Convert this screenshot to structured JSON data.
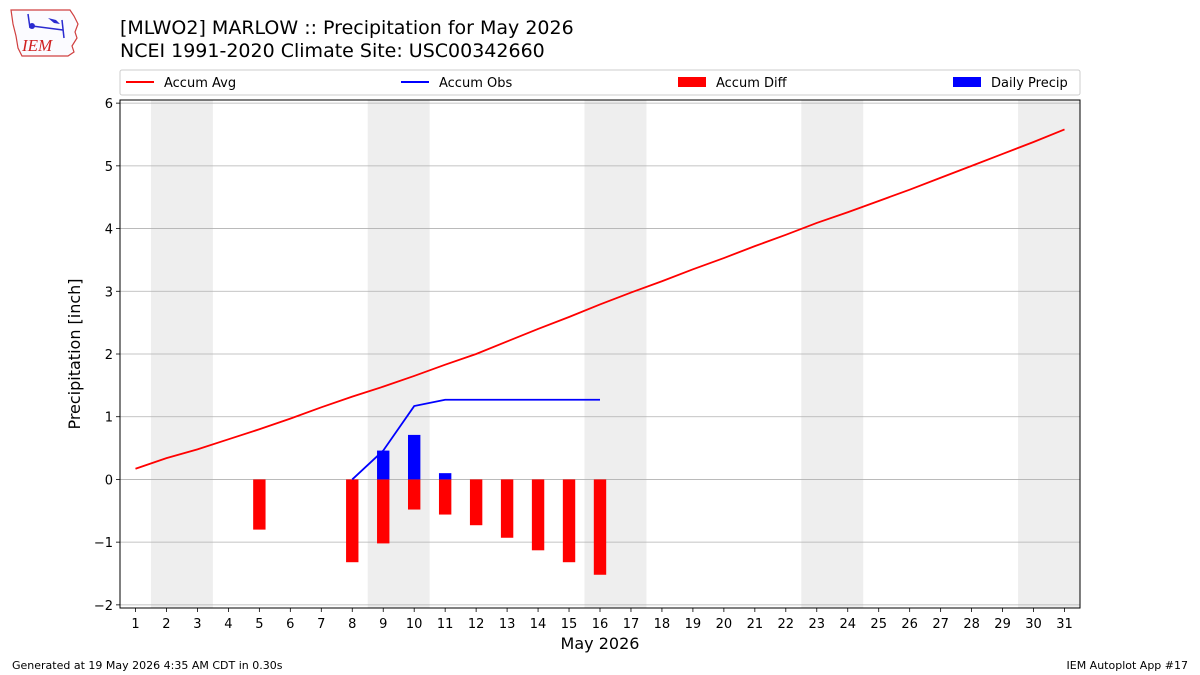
{
  "header": {
    "title_line1": "[MLWO2] MARLOW :: Precipitation for May 2026",
    "title_line2": "NCEI 1991-2020 Climate Site: USC00342660",
    "logo_text": "IEM"
  },
  "footer": {
    "left": "Generated at 19 May 2026 4:35 AM CDT in 0.30s",
    "right": "IEM Autoplot App #17"
  },
  "colors": {
    "avg": "#ff0000",
    "obs": "#0000ff",
    "diff": "#ff0000",
    "daily": "#0000ff",
    "weekend_shade": "#eeeeee",
    "grid": "#b0b0b0"
  },
  "chart_data": {
    "type": "line",
    "title": "[MLWO2] MARLOW :: Precipitation for May 2026",
    "subtitle": "NCEI 1991-2020 Climate Site: USC00342660",
    "xlabel": "May 2026",
    "ylabel": "Precipitation [inch]",
    "xlim": [
      0.5,
      31.5
    ],
    "ylim": [
      -2.05,
      6.05
    ],
    "x_ticks": [
      1,
      2,
      3,
      4,
      5,
      6,
      7,
      8,
      9,
      10,
      11,
      12,
      13,
      14,
      15,
      16,
      17,
      18,
      19,
      20,
      21,
      22,
      23,
      24,
      25,
      26,
      27,
      28,
      29,
      30,
      31
    ],
    "y_ticks": [
      -2,
      -1,
      0,
      1,
      2,
      3,
      4,
      5,
      6
    ],
    "y_tick_labels": [
      "−2",
      "−1",
      "0",
      "1",
      "2",
      "3",
      "4",
      "5",
      "6"
    ],
    "grid": "horizontal",
    "legend_placement": "top",
    "shaded_day_ranges": [
      [
        2,
        3
      ],
      [
        9,
        10
      ],
      [
        16,
        17
      ],
      [
        23,
        24
      ],
      [
        30,
        31
      ]
    ],
    "legend": [
      "Accum Avg",
      "Accum Obs",
      "Accum Diff",
      "Daily Precip"
    ],
    "series": [
      {
        "name": "Accum Avg",
        "kind": "line",
        "x": [
          1,
          2,
          3,
          4,
          5,
          6,
          7,
          8,
          9,
          10,
          11,
          12,
          13,
          14,
          15,
          16,
          17,
          18,
          19,
          20,
          21,
          22,
          23,
          24,
          25,
          26,
          27,
          28,
          29,
          30,
          31
        ],
        "values": [
          0.17,
          0.34,
          0.48,
          0.64,
          0.8,
          0.97,
          1.15,
          1.32,
          1.48,
          1.65,
          1.83,
          2.0,
          2.2,
          2.4,
          2.59,
          2.79,
          2.98,
          3.16,
          3.35,
          3.53,
          3.72,
          3.9,
          4.09,
          4.26,
          4.44,
          4.62,
          4.81,
          5.0,
          5.19,
          5.38,
          5.58
        ]
      },
      {
        "name": "Accum Obs",
        "kind": "line",
        "x": [
          8,
          9,
          10,
          11,
          12,
          13,
          14,
          15,
          16
        ],
        "values": [
          0.0,
          0.46,
          1.17,
          1.27,
          1.27,
          1.27,
          1.27,
          1.27,
          1.27
        ]
      },
      {
        "name": "Accum Diff",
        "kind": "bar",
        "x": [
          5,
          8,
          9,
          10,
          11,
          12,
          13,
          14,
          15,
          16
        ],
        "values": [
          -0.8,
          -1.32,
          -1.02,
          -0.48,
          -0.56,
          -0.73,
          -0.93,
          -1.13,
          -1.32,
          -1.52
        ]
      },
      {
        "name": "Daily Precip",
        "kind": "bar",
        "x": [
          9,
          10,
          11
        ],
        "values": [
          0.46,
          0.71,
          0.1
        ]
      }
    ]
  }
}
